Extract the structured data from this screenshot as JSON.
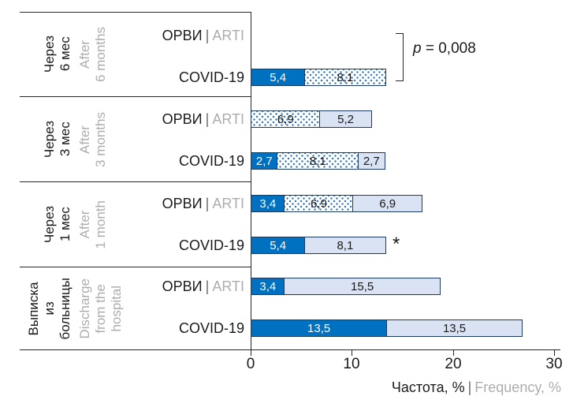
{
  "strings": {
    "pipe": "|"
  },
  "colors": {
    "bar_solid_blue": "#0070c0",
    "bar_light_fill": "#dae3f3",
    "bar_dot_blue": "#3579bd",
    "bar_border": "#1e3a5f",
    "gray_text": "#adadad",
    "black_text": "#1a1a1a"
  },
  "axis": {
    "ticks": [
      "0",
      "10",
      "20",
      "30"
    ],
    "title_ru": "Частота, %",
    "title_en": "Frequency, %"
  },
  "annotations": {
    "p_italic": "p",
    "p_value": "= 0,008",
    "asterisk": "*"
  },
  "chart_data": {
    "type": "bar",
    "orientation": "horizontal",
    "x_axis_label": "Частота, % | Frequency, %",
    "xlim": [
      0,
      30
    ],
    "xticks": [
      0,
      10,
      20,
      30
    ],
    "grid": false,
    "legend": "none",
    "segment_styles": {
      "solid": "solid blue fill, white value label",
      "dotted": "white fill with blue dot pattern, black value label",
      "light": "pale blue fill, black value label"
    },
    "groups": [
      {
        "label_ru": "Через\n6 мес",
        "label_en": "After\n6 months",
        "annotation_p": "p = 0,008",
        "rows": [
          {
            "label_ru": "ОРВИ",
            "label_en": "ARTI",
            "segments": []
          },
          {
            "label": "COVID-19",
            "segments": [
              {
                "value": 5.4,
                "label": "5,4",
                "style": "solid"
              },
              {
                "value": 8.1,
                "label": "8,1",
                "style": "dotted"
              }
            ]
          }
        ]
      },
      {
        "label_ru": "Через\n3 мес",
        "label_en": "After\n3 months",
        "rows": [
          {
            "label_ru": "ОРВИ",
            "label_en": "ARTI",
            "segments": [
              {
                "value": 6.9,
                "label": "6,9",
                "style": "dotted"
              },
              {
                "value": 5.2,
                "label": "5,2",
                "style": "light"
              }
            ]
          },
          {
            "label": "COVID-19",
            "segments": [
              {
                "value": 2.7,
                "label": "2,7",
                "style": "solid"
              },
              {
                "value": 8.1,
                "label": "8,1",
                "style": "dotted"
              },
              {
                "value": 2.7,
                "label": "2,7",
                "style": "light"
              }
            ]
          }
        ]
      },
      {
        "label_ru": "Через\n1 мес",
        "label_en": "After\n1 month",
        "rows": [
          {
            "label_ru": "ОРВИ",
            "label_en": "ARTI",
            "segments": [
              {
                "value": 3.4,
                "label": "3,4",
                "style": "solid"
              },
              {
                "value": 6.9,
                "label": "6,9",
                "style": "dotted"
              },
              {
                "value": 6.9,
                "label": "6,9",
                "style": "light"
              }
            ]
          },
          {
            "label": "COVID-19",
            "marker": "*",
            "segments": [
              {
                "value": 5.4,
                "label": "5,4",
                "style": "solid"
              },
              {
                "value": 8.1,
                "label": "8,1",
                "style": "light"
              }
            ]
          }
        ]
      },
      {
        "label_ru": "Выписка\nиз\nбольницы",
        "label_en": "Discharge\nfrom the\nhospital",
        "rows": [
          {
            "label_ru": "ОРВИ",
            "label_en": "ARTI",
            "segments": [
              {
                "value": 3.4,
                "label": "3,4",
                "style": "solid"
              },
              {
                "value": 15.5,
                "label": "15,5",
                "style": "light"
              }
            ]
          },
          {
            "label": "COVID-19",
            "segments": [
              {
                "value": 13.5,
                "label": "13,5",
                "style": "solid"
              },
              {
                "value": 13.5,
                "label": "13,5",
                "style": "light"
              }
            ]
          }
        ]
      }
    ]
  }
}
